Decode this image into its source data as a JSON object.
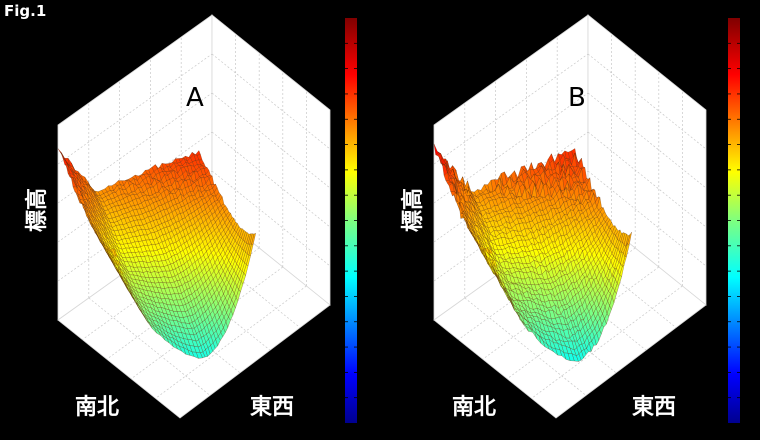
{
  "figure": {
    "label": "Fig.1"
  },
  "chart_data": [
    {
      "type": "surface",
      "panel_label": "A",
      "xlabel": "東西",
      "ylabel": "南北",
      "zlabel": "標高",
      "colorbar": "jet",
      "colorbar_ticks": "unlabeled",
      "grid": true,
      "view": "3d",
      "profile": {
        "west_edge_height": 0.8,
        "valley_min": 0.05,
        "east_ridge_height": 0.74,
        "roughness": "low"
      }
    },
    {
      "type": "surface",
      "panel_label": "B",
      "xlabel": "東西",
      "ylabel": "南北",
      "zlabel": "標高",
      "colorbar": "jet",
      "colorbar_ticks": "unlabeled",
      "grid": true,
      "view": "3d",
      "profile": {
        "west_edge_height": 0.8,
        "valley_min": 0.04,
        "east_ridge_height": 0.74,
        "roughness": "high"
      }
    }
  ],
  "colors": {
    "background": "#000000",
    "box_face": "#ffffff",
    "grid": "#c8c8c8",
    "surface_edge": "#5a2a08"
  }
}
